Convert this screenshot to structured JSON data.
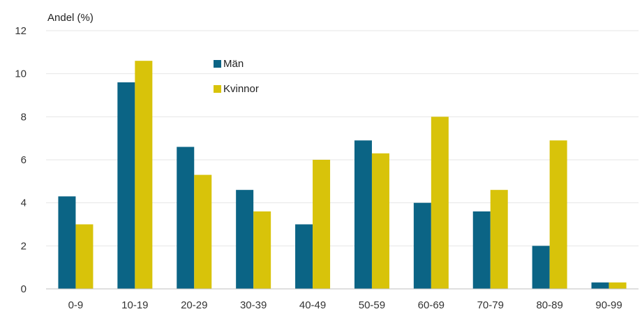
{
  "chart_data": {
    "type": "bar",
    "ylabel": "Andel (%)",
    "xlabel": "",
    "ylim": [
      0,
      12
    ],
    "yticks": [
      "0",
      "2",
      "4",
      "6",
      "8",
      "10",
      "12"
    ],
    "grid": true,
    "legend_position": "top-left",
    "categories": [
      "0-9",
      "10-19",
      "20-29",
      "30-39",
      "40-49",
      "50-59",
      "60-69",
      "70-79",
      "80-89",
      "90-99"
    ],
    "series": [
      {
        "name": "Män",
        "color": "#0B6485",
        "values": [
          4.3,
          9.6,
          6.6,
          4.6,
          3.0,
          6.9,
          4.0,
          3.6,
          2.0,
          0.3
        ]
      },
      {
        "name": "Kvinnor",
        "color": "#D8C30A",
        "values": [
          3.0,
          10.6,
          5.3,
          3.6,
          6.0,
          6.3,
          8.0,
          4.6,
          6.9,
          0.3
        ]
      }
    ]
  }
}
